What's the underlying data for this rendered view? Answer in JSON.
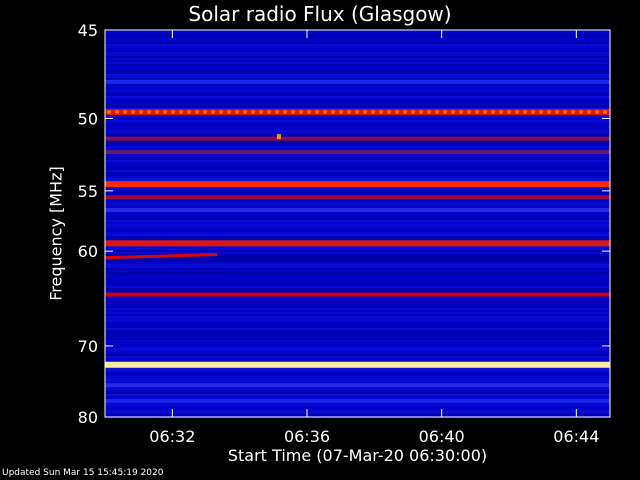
{
  "chart_data": {
    "type": "heatmap",
    "title": "Solar radio Flux (Glasgow)",
    "xlabel": "Start Time (07-Mar-20 06:30:00)",
    "ylabel": "Frequency [MHz]",
    "xlim": [
      "06:30:00",
      "06:45:00"
    ],
    "ylim": [
      45,
      80
    ],
    "y_ticks": [
      "45",
      "50",
      "55",
      "60",
      "70",
      "80"
    ],
    "x_ticks": [
      "06:32",
      "06:36",
      "06:40",
      "06:44"
    ],
    "colormap": [
      "#000030",
      "#0000c8",
      "#1e2ef0",
      "#7a1250",
      "#cc0010",
      "#ff2a00",
      "#ff9a00",
      "#ffffd8"
    ],
    "background_level": 0.15,
    "bands": [
      {
        "mhz": 47.8,
        "level": 0.27
      },
      {
        "mhz": 49.6,
        "level": 0.62,
        "style": "dashed"
      },
      {
        "mhz": 51.3,
        "level": 0.45
      },
      {
        "mhz": 52.2,
        "level": 0.4
      },
      {
        "mhz": 54.5,
        "level": 0.72
      },
      {
        "mhz": 55.5,
        "level": 0.48
      },
      {
        "mhz": 56.5,
        "level": 0.3
      },
      {
        "mhz": 59.3,
        "level": 0.64
      },
      {
        "mhz": 64.2,
        "level": 0.55
      },
      {
        "mhz": 72.4,
        "level": 0.97
      },
      {
        "mhz": 75.2,
        "level": 0.3
      },
      {
        "mhz": 77.5,
        "level": 0.26
      }
    ],
    "features": [
      {
        "type": "burst",
        "time": "06:35:10",
        "mhz": 51.2,
        "level": 0.85
      },
      {
        "type": "drifting-line",
        "from_time": "06:30:00",
        "to_time": "06:33:20",
        "mhz_start": 60.6,
        "mhz_end": 60.3,
        "level": 0.6
      }
    ]
  },
  "footer": "Updated Sun Mar 15 15:45:19 2020"
}
